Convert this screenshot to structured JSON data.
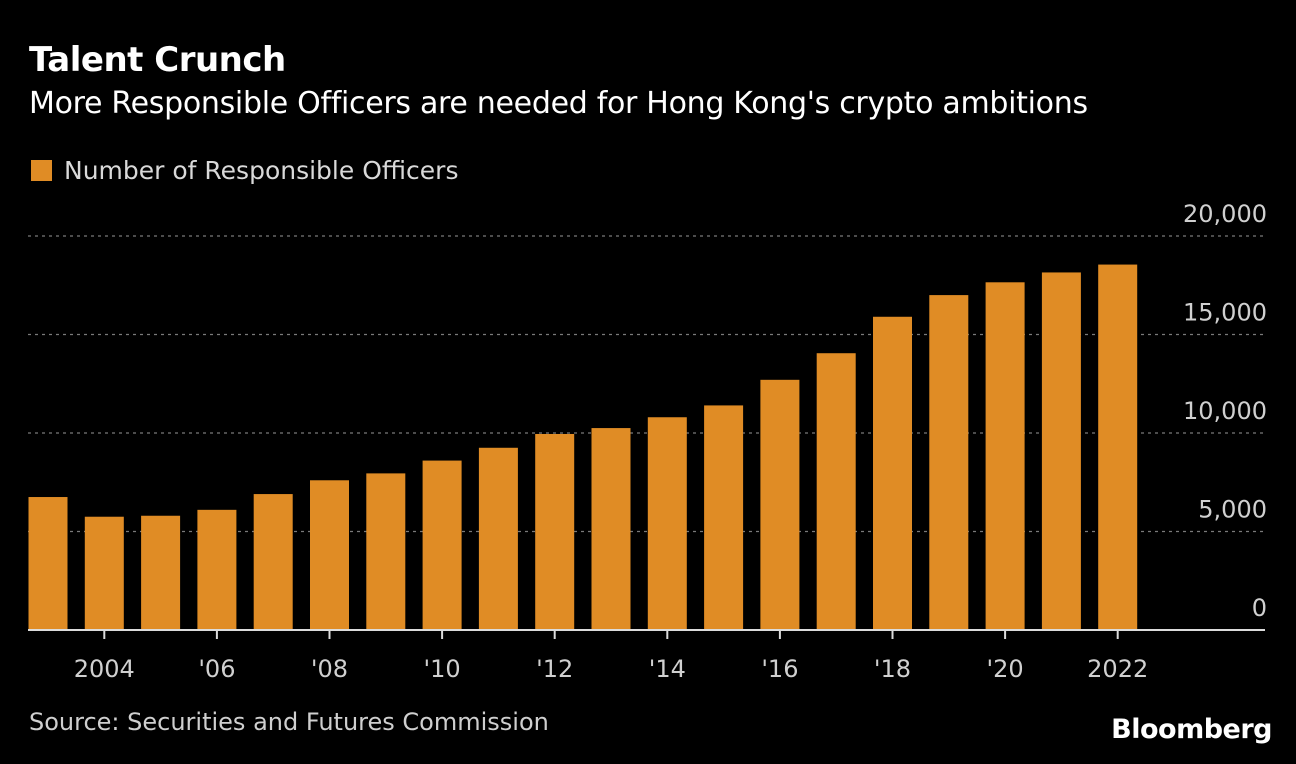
{
  "header": {
    "title": "Talent Crunch",
    "subtitle": "More Responsible Officers are needed for Hong Kong's crypto ambitions"
  },
  "legend": {
    "label": "Number of Responsible Officers",
    "color": "#e08c25"
  },
  "footer": {
    "source": "Source: Securities and Futures Commission",
    "brand": "Bloomberg"
  },
  "chart_data": {
    "type": "bar",
    "title": "Talent Crunch",
    "subtitle": "More Responsible Officers are needed for Hong Kong's crypto ambitions",
    "categories": [
      "2003",
      "2004",
      "2005",
      "2006",
      "2007",
      "2008",
      "2009",
      "2010",
      "2011",
      "2012",
      "2013",
      "2014",
      "2015",
      "2016",
      "2017",
      "2018",
      "2019",
      "2020",
      "2021",
      "2022"
    ],
    "series": [
      {
        "name": "Number of Responsible Officers",
        "color": "#e08c25",
        "values": [
          6750,
          5750,
          5800,
          6100,
          6900,
          7600,
          7950,
          8600,
          9250,
          9950,
          10250,
          10800,
          11400,
          12700,
          14050,
          15900,
          17000,
          17650,
          18150,
          18550
        ]
      }
    ],
    "x_tick_labels": [
      {
        "category": "2004",
        "label": "2004"
      },
      {
        "category": "2006",
        "label": "'06"
      },
      {
        "category": "2008",
        "label": "'08"
      },
      {
        "category": "2010",
        "label": "'10"
      },
      {
        "category": "2012",
        "label": "'12"
      },
      {
        "category": "2014",
        "label": "'14"
      },
      {
        "category": "2016",
        "label": "'16"
      },
      {
        "category": "2018",
        "label": "'18"
      },
      {
        "category": "2020",
        "label": "'20"
      },
      {
        "category": "2022",
        "label": "2022"
      }
    ],
    "y_ticks": [
      {
        "value": 0,
        "label": "0"
      },
      {
        "value": 5000,
        "label": "5,000"
      },
      {
        "value": 10000,
        "label": "10,000"
      },
      {
        "value": 15000,
        "label": "15,000"
      },
      {
        "value": 20000,
        "label": "20,000"
      }
    ],
    "ylim": [
      0,
      20000
    ],
    "y_axis_side": "right",
    "grid": "dashed horizontal",
    "legend_position": "top-left"
  }
}
